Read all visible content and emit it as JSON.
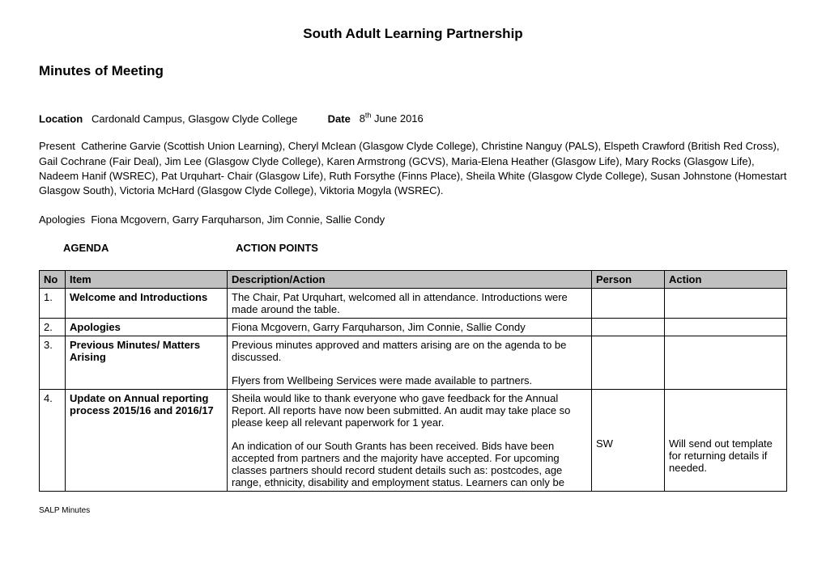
{
  "header": {
    "title": "South Adult Learning Partnership",
    "subtitle": "Minutes of Meeting"
  },
  "meta": {
    "location_label": "Location",
    "location_value": "Cardonald Campus, Glasgow Clyde College",
    "date_label": "Date",
    "date_value_prefix": "8",
    "date_value_sup": "th",
    "date_value_suffix": " June 2016",
    "present_label": "Present",
    "present_value": "Catherine Garvie (Scottish Union Learning), Cheryl McIean (Glasgow Clyde College), Christine Nanguy (PALS), Elspeth Crawford (British Red Cross), Gail Cochrane (Fair Deal), Jim Lee (Glasgow Clyde College), Karen Armstrong (GCVS), Maria-Elena Heather (Glasgow Life), Mary Rocks (Glasgow Life), Nadeem Hanif (WSREC), Pat Urquhart- Chair (Glasgow Life), Ruth Forsythe (Finns Place), Sheila White (Glasgow Clyde College), Susan Johnstone (Homestart Glasgow South), Victoria McHard (Glasgow Clyde College), Viktoria Mogyla (WSREC).",
    "apologies_label": "Apologies",
    "apologies_value": "Fiona Mcgovern, Garry Farquharson, Jim Connie, Sallie Condy"
  },
  "agenda_heading": {
    "col1": "AGENDA",
    "col2": "ACTION POINTS"
  },
  "table": {
    "columns": {
      "no": "No",
      "item": "Item",
      "desc": "Description/Action",
      "person": "Person",
      "action": "Action"
    },
    "rows": [
      {
        "no": "1.",
        "item": "Welcome and Introductions",
        "desc_paras": [
          "The Chair, Pat Urquhart, welcomed all in attendance. Introductions were made around the table."
        ],
        "person": "",
        "action": ""
      },
      {
        "no": "2.",
        "item": "Apologies",
        "desc_paras": [
          "Fiona Mcgovern, Garry Farquharson, Jim Connie, Sallie Condy"
        ],
        "person": "",
        "action": ""
      },
      {
        "no": "3.",
        "item": "Previous Minutes/ Matters Arising",
        "desc_paras": [
          "Previous minutes approved and matters arising are on the agenda to be discussed.",
          "Flyers from Wellbeing Services were made available to partners."
        ],
        "person": "",
        "action": ""
      },
      {
        "no": "4.",
        "item": "Update on Annual reporting process 2015/16 and 2016/17",
        "desc_paras": [
          "Sheila would like to thank everyone who gave feedback for the Annual Report. All reports have now been submitted. An audit may take place so please keep all relevant paperwork for 1 year.",
          "An indication of our South Grants has been received. Bids have been accepted from partners and the majority have accepted. For upcoming classes partners should record student details such as: postcodes, age range, ethnicity, disability and employment status. Learners can only be"
        ],
        "person": "SW",
        "action": "Will send out template for returning details if needed."
      }
    ]
  },
  "footer": {
    "text": "SALP Minutes"
  }
}
